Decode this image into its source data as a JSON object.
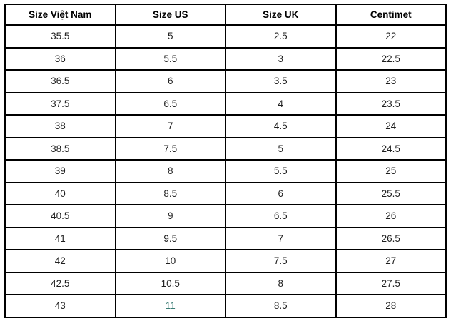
{
  "table": {
    "title": "shoe-size-conversion",
    "columns": [
      {
        "label": "Size Việt Nam"
      },
      {
        "label": "Size US"
      },
      {
        "label": "Size UK"
      },
      {
        "label": "Centimet"
      }
    ],
    "rows": [
      [
        "35.5",
        "5",
        "2.5",
        "22"
      ],
      [
        "36",
        "5.5",
        "3",
        "22.5"
      ],
      [
        "36.5",
        "6",
        "3.5",
        "23"
      ],
      [
        "37.5",
        "6.5",
        "4",
        "23.5"
      ],
      [
        "38",
        "7",
        "4.5",
        "24"
      ],
      [
        "38.5",
        "7.5",
        "5",
        "24.5"
      ],
      [
        "39",
        "8",
        "5.5",
        "25"
      ],
      [
        "40",
        "8.5",
        "6",
        "25.5"
      ],
      [
        "40.5",
        "9",
        "6.5",
        "26"
      ],
      [
        "41",
        "9.5",
        "7",
        "26.5"
      ],
      [
        "42",
        "10",
        "7.5",
        "27"
      ],
      [
        "42.5",
        "10.5",
        "8",
        "27.5"
      ],
      [
        "43",
        "11",
        "8.5",
        "28"
      ]
    ],
    "highlight": {
      "row": 12,
      "col": 1,
      "color": "#3a7c74"
    },
    "colors": {
      "border": "#000000",
      "header_text": "#000000",
      "cell_text": "#1f1f1f",
      "background": "#ffffff"
    }
  }
}
